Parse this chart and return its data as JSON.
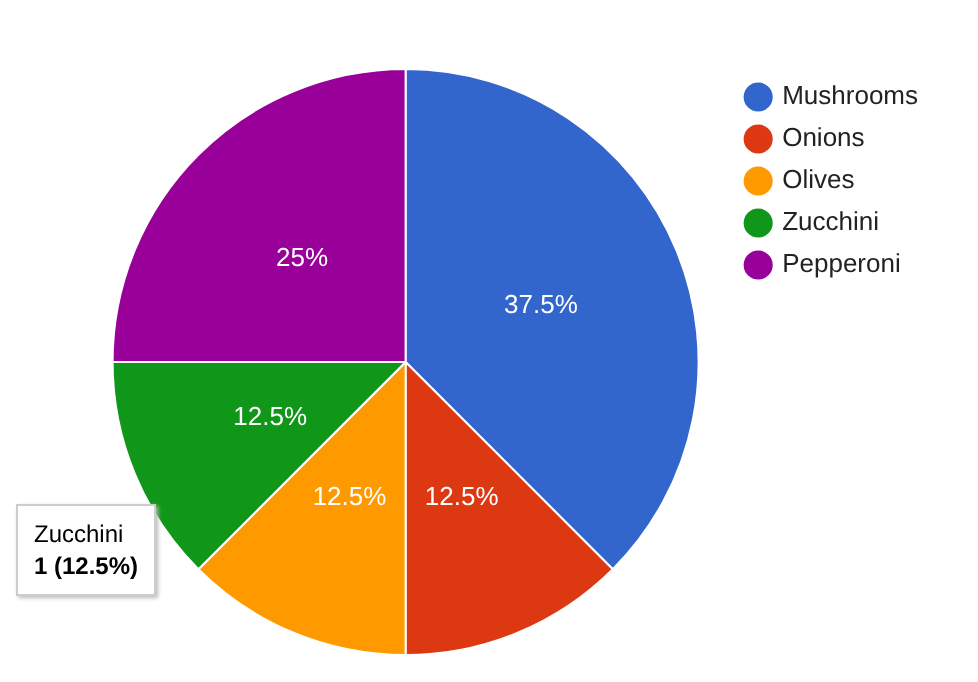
{
  "chart_data": {
    "type": "pie",
    "categories": [
      "Mushrooms",
      "Onions",
      "Olives",
      "Zucchini",
      "Pepperoni"
    ],
    "values": [
      37.5,
      12.5,
      12.5,
      12.5,
      25
    ],
    "colors": [
      "#3366cc",
      "#dc3912",
      "#ff9900",
      "#109618",
      "#990099"
    ],
    "value_labels": [
      "37.5%",
      "12.5%",
      "12.5%",
      "12.5%",
      "25%"
    ],
    "legend": "top right",
    "annotations": [
      "Zucchini",
      "1 (12.5%)"
    ]
  }
}
